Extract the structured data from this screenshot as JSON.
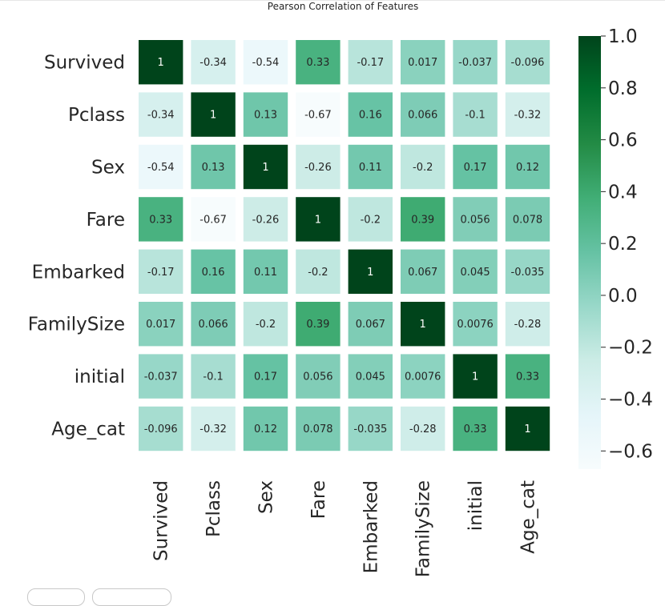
{
  "chart_data": {
    "type": "heatmap",
    "title": "Pearson Correlation of Features",
    "labels": [
      "Survived",
      "Pclass",
      "Sex",
      "Fare",
      "Embarked",
      "FamilySize",
      "initial",
      "Age_cat"
    ],
    "matrix": [
      [
        1,
        -0.34,
        -0.54,
        0.33,
        -0.17,
        0.017,
        -0.037,
        -0.096
      ],
      [
        -0.34,
        1,
        0.13,
        -0.67,
        0.16,
        0.066,
        -0.1,
        -0.32
      ],
      [
        -0.54,
        0.13,
        1,
        -0.26,
        0.11,
        -0.2,
        0.17,
        0.12
      ],
      [
        0.33,
        -0.67,
        -0.26,
        1,
        -0.2,
        0.39,
        0.056,
        0.078
      ],
      [
        -0.17,
        0.16,
        0.11,
        -0.2,
        1,
        0.067,
        0.045,
        -0.035
      ],
      [
        0.017,
        0.066,
        -0.2,
        0.39,
        0.067,
        1,
        0.0076,
        -0.28
      ],
      [
        -0.037,
        -0.1,
        0.17,
        0.056,
        0.045,
        0.0076,
        1,
        0.33
      ],
      [
        -0.096,
        -0.32,
        0.12,
        0.078,
        -0.035,
        -0.28,
        0.33,
        1
      ]
    ],
    "annotations": [
      [
        "1",
        "-0.34",
        "-0.54",
        "0.33",
        "-0.17",
        "0.017",
        "-0.037",
        "-0.096"
      ],
      [
        "-0.34",
        "1",
        "0.13",
        "-0.67",
        "0.16",
        "0.066",
        "-0.1",
        "-0.32"
      ],
      [
        "-0.54",
        "0.13",
        "1",
        "-0.26",
        "0.11",
        "-0.2",
        "0.17",
        "0.12"
      ],
      [
        "0.33",
        "-0.67",
        "-0.26",
        "1",
        "-0.2",
        "0.39",
        "0.056",
        "0.078"
      ],
      [
        "-0.17",
        "0.16",
        "0.11",
        "-0.2",
        "1",
        "0.067",
        "0.045",
        "-0.035"
      ],
      [
        "0.017",
        "0.066",
        "-0.2",
        "0.39",
        "0.067",
        "1",
        "0.0076",
        "-0.28"
      ],
      [
        "-0.037",
        "-0.1",
        "0.17",
        "0.056",
        "0.045",
        "0.0076",
        "1",
        "0.33"
      ],
      [
        "-0.096",
        "-0.32",
        "0.12",
        "0.078",
        "-0.035",
        "-0.28",
        "0.33",
        "1"
      ]
    ],
    "colormap": "BuGn",
    "colormap_stops": [
      "#f7fcfd",
      "#e5f5f9",
      "#ccece6",
      "#99d8c9",
      "#66c2a4",
      "#41ae76",
      "#238b45",
      "#006d2c",
      "#00441b"
    ],
    "vmin": -0.67,
    "vmax": 1.0,
    "colorbar_ticks": [
      1.0,
      0.8,
      0.6,
      0.4,
      0.2,
      0.0,
      -0.2,
      -0.4,
      -0.6
    ],
    "colorbar_tick_labels": [
      "1.0",
      "0.8",
      "0.6",
      "0.4",
      "0.2",
      "0.0",
      "−0.2",
      "−0.4",
      "−0.6"
    ],
    "text_light_color": "#ffffff",
    "text_dark_color": "#262626"
  }
}
